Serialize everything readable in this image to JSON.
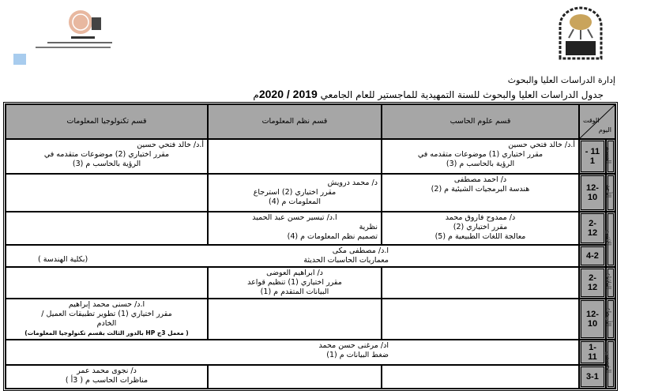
{
  "header": {
    "logo_left_text": "كلية الحاسبات والمعلومات - كلية معتمدة من الهيئة القومية لضمان جودة التعليم والاعتماد",
    "logo_right_text": "جامعة أسيوط",
    "department": "إدارة الدراسات العليا والبحوث",
    "title": "جدول الدراسات العليا والبحوث للسنة التمهيدية للماجستير للعام الجامعي",
    "year": "2019 / 2020",
    "year_suffix": "م"
  },
  "table": {
    "corner_time": "الوقت",
    "corner_day": "اليوم",
    "columns": [
      "قسم علوم الحاسب",
      "قسم نظم المعلومات",
      "قسم تكنولوجيا المعلومات"
    ],
    "days": [
      "السبت",
      "الأحد",
      "الاثنين",
      "الثلاثاء",
      "الأربعاء",
      "الخميس"
    ],
    "rows": [
      {
        "time": "11 - 1",
        "cs": [
          "أ.د/ خالد فتحي حسين",
          "مقرر اختياري (1) موضوعات متقدمه في",
          "الرؤية بالحاسب م (3)"
        ],
        "is": [],
        "it": [
          "أ.د/ خالد فتحي حسين",
          "مقرر اختياري (2) موضوعات متقدمه في",
          "الرؤية بالحاسب م (3)"
        ]
      },
      {
        "time": "12-10",
        "cs": [
          "د/ احمد مصطفى",
          "هندسة البرمجيات الشيئية م (2)"
        ],
        "is": [
          "د/ محمد درويش",
          "مقرر اختياري (2) استرجاع",
          "المعلومات م (4)"
        ],
        "it": []
      },
      {
        "time": "2-12",
        "cs": [
          "د/ ممدوح فاروق محمد",
          "مقرر اختياري (2)",
          "معالجة اللغات الطبيعية م (5)"
        ],
        "is": [
          "ا.د/ تيسير حسن عبد الحميد",
          "نظرية",
          "تصميم نظم المعلومات م (4)"
        ],
        "it": []
      },
      {
        "time": "4-2",
        "merged": [
          "ا.د/ مصطفى مكى",
          "معماريات الحاسبات الحديثة"
        ],
        "merged_note": "(بكلية الهندسة )"
      },
      {
        "time": "2-12",
        "cs": [],
        "is": [
          "د/ ابراهيم العوضى",
          "مقرر اختياري (1) تنظيم قواعد",
          "البيانات المتقدم م (1)"
        ],
        "it": []
      },
      {
        "time": "12-10",
        "cs": [],
        "is": [],
        "it": [
          "ا.د/ حسنى محمد إبراهيم",
          "مقرر اختياري (1) تطوير تطبيقات العميل /",
          "الخادم"
        ],
        "it_note": "( معمل 3ج HP بالدور الثالث بقسم تكنولوجيا المعلومات)"
      },
      {
        "time": "1-11",
        "merged": [
          "اد/ مرغنى حسن محمد",
          "ضغط البيانات م (1)"
        ]
      },
      {
        "time": "3-1",
        "cs": [],
        "is": [],
        "it": [
          "د/ نجوى محمد عمر",
          "مناظرات الحاسب م ( 3أ )"
        ]
      }
    ]
  },
  "colors": {
    "header_fill": "#a6a6a6",
    "logo_square": "#a8ccee",
    "seal_gold": "#c9a45c"
  }
}
